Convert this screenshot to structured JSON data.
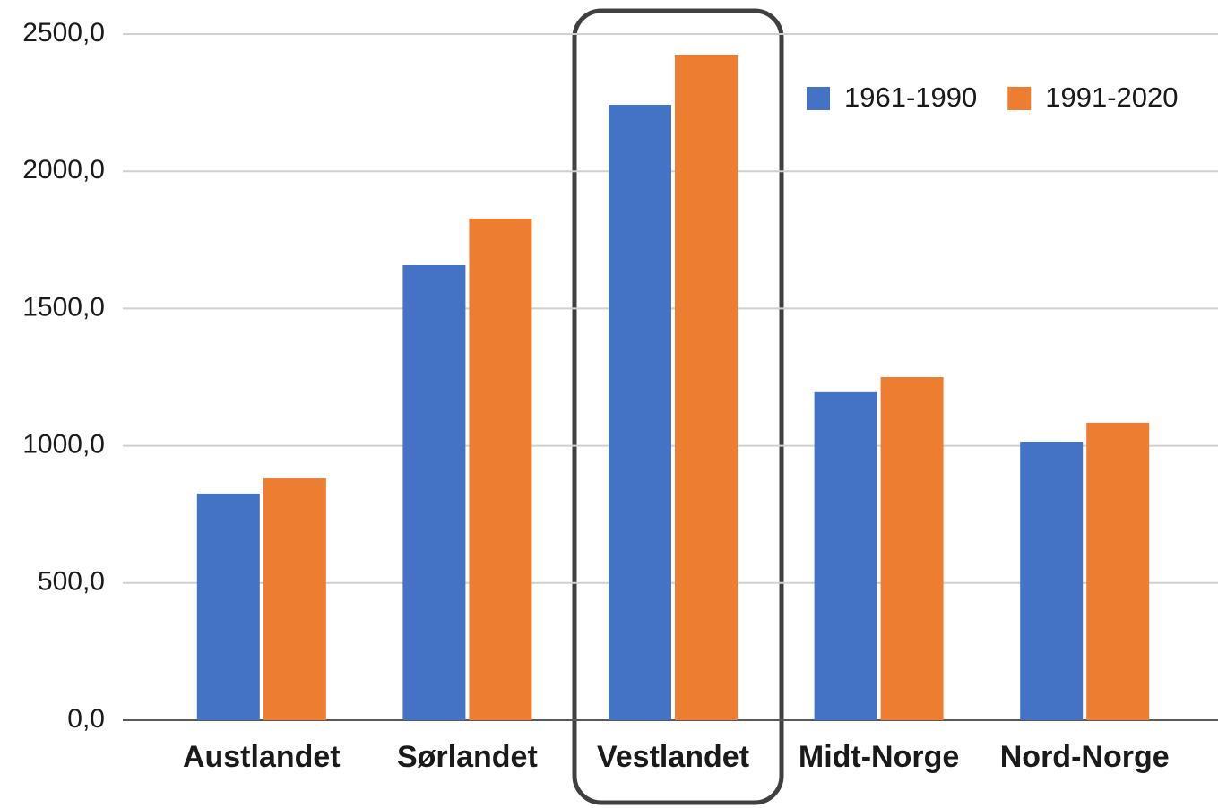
{
  "chart_data": {
    "type": "bar",
    "categories": [
      "Austlandet",
      "Sørlandet",
      "Vestlandet",
      "Midt-Norge",
      "Nord-Norge"
    ],
    "series": [
      {
        "name": "1961-1990",
        "color": "#4472c4",
        "values": [
          826,
          1658,
          2242,
          1195,
          1015
        ]
      },
      {
        "name": "1991-2020",
        "color": "#ed7d31",
        "values": [
          881,
          1828,
          2425,
          1250,
          1084
        ]
      }
    ],
    "ylim": [
      0,
      2500
    ],
    "yticks": [
      {
        "value": 0,
        "label": "0,0"
      },
      {
        "value": 500,
        "label": "500,0"
      },
      {
        "value": 1000,
        "label": "1000,0"
      },
      {
        "value": 1500,
        "label": "1500,0"
      },
      {
        "value": 2000,
        "label": "2000,0"
      },
      {
        "value": 2500,
        "label": "2500,0"
      }
    ],
    "grid": true,
    "legend": "top-right"
  }
}
